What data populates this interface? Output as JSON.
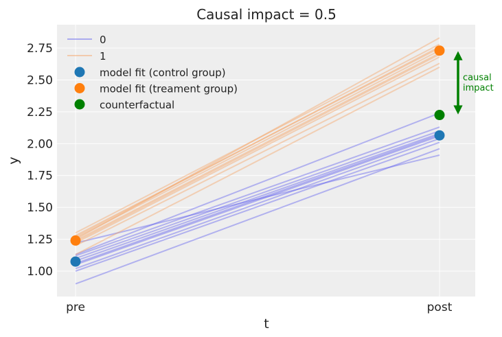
{
  "chart_data": {
    "type": "line",
    "title": "Causal impact = 0.5",
    "xlabel": "t",
    "ylabel": "y",
    "categories": [
      "pre",
      "post"
    ],
    "ylim": [
      0.8,
      2.93
    ],
    "yticks": [
      "1.00",
      "1.25",
      "1.50",
      "1.75",
      "2.00",
      "2.25",
      "2.50",
      "2.75"
    ],
    "grid": true,
    "legend_placement": "top-left",
    "colors": {
      "control": "#1f77b4",
      "treatment": "#ff7f0e",
      "counterfactual": "#008000",
      "control_lines": "#6666ee",
      "treatment_lines": "#f5a66a",
      "background": "#eeeeee"
    },
    "group_lines": [
      {
        "name": "0",
        "lines": [
          [
            0.9,
            1.96
          ],
          [
            1.0,
            2.01
          ],
          [
            1.02,
            2.04
          ],
          [
            1.05,
            2.06
          ],
          [
            1.08,
            2.08
          ],
          [
            1.1,
            2.1
          ],
          [
            1.12,
            2.13
          ],
          [
            1.13,
            2.24
          ],
          [
            1.22,
            1.91
          ],
          [
            1.06,
            2.07
          ]
        ]
      },
      {
        "name": "1",
        "lines": [
          [
            1.13,
            2.6
          ],
          [
            1.2,
            2.63
          ],
          [
            1.22,
            2.68
          ],
          [
            1.24,
            2.71
          ],
          [
            1.26,
            2.73
          ],
          [
            1.28,
            2.75
          ],
          [
            1.3,
            2.78
          ],
          [
            1.25,
            2.83
          ],
          [
            1.23,
            2.7
          ],
          [
            1.27,
            2.76
          ]
        ]
      }
    ],
    "points": [
      {
        "name": "model fit (control group)",
        "values": [
          1.075,
          2.065
        ]
      },
      {
        "name": "model fit (treament group)",
        "values": [
          1.24,
          2.73
        ]
      },
      {
        "name": "counterfactual",
        "values": [
          null,
          2.225
        ]
      }
    ],
    "annotation": {
      "text": [
        "causal",
        "impact"
      ],
      "from": 2.225,
      "to": 2.73
    }
  }
}
